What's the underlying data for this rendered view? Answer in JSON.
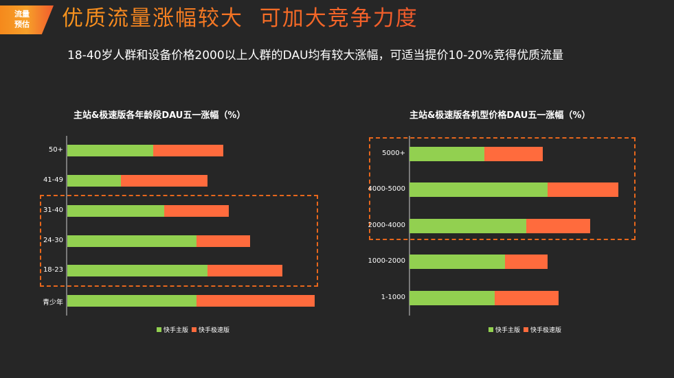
{
  "badge": {
    "line1": "流量",
    "line2": "预估"
  },
  "title": "优质流量涨幅较大  可加大竞争力度",
  "subtitle": "18-40岁人群和设备价格2000以上人群的DAU均有较大涨幅，可适当提价10-20%竞得优质流量",
  "colors": {
    "main": "#92d050",
    "lite": "#ff6b3d",
    "highlight": "#e8671c",
    "background": "#262626"
  },
  "legend": [
    {
      "label": "快手主版",
      "color": "#92d050"
    },
    {
      "label": "快手极速版",
      "color": "#ff6b3d"
    }
  ],
  "chart_data": [
    {
      "type": "bar",
      "orientation": "horizontal",
      "stacked": true,
      "title": "主站&极速版各年龄段DAU五一涨幅（%）",
      "categories": [
        "50+",
        "41-49",
        "31-40",
        "24-30",
        "18-23",
        "青少年"
      ],
      "series": [
        {
          "name": "快手主版",
          "values": [
            125,
            78,
            141,
            188,
            204,
            188
          ]
        },
        {
          "name": "快手极速版",
          "values": [
            102,
            126,
            94,
            78,
            109,
            172
          ]
        }
      ],
      "units": "relative bar length (px, no axis ticks shown)",
      "highlighted_categories": [
        "31-40",
        "24-30",
        "18-23"
      ],
      "grid": false,
      "legend_position": "bottom"
    },
    {
      "type": "bar",
      "orientation": "horizontal",
      "stacked": true,
      "title": "主站&极速版各机型价格DAU五一涨幅（%）",
      "categories": [
        "5000+",
        "4000-5000",
        "2000-4000",
        "1000-2000",
        "1-1000"
      ],
      "series": [
        {
          "name": "快手主版",
          "values": [
            109,
            201,
            170,
            139,
            124
          ]
        },
        {
          "name": "快手极速版",
          "values": [
            85,
            103,
            93,
            62,
            93
          ]
        }
      ],
      "units": "relative bar length (px, no axis ticks shown)",
      "highlighted_categories": [
        "5000+",
        "4000-5000",
        "2000-4000"
      ],
      "grid": false,
      "legend_position": "bottom"
    }
  ]
}
